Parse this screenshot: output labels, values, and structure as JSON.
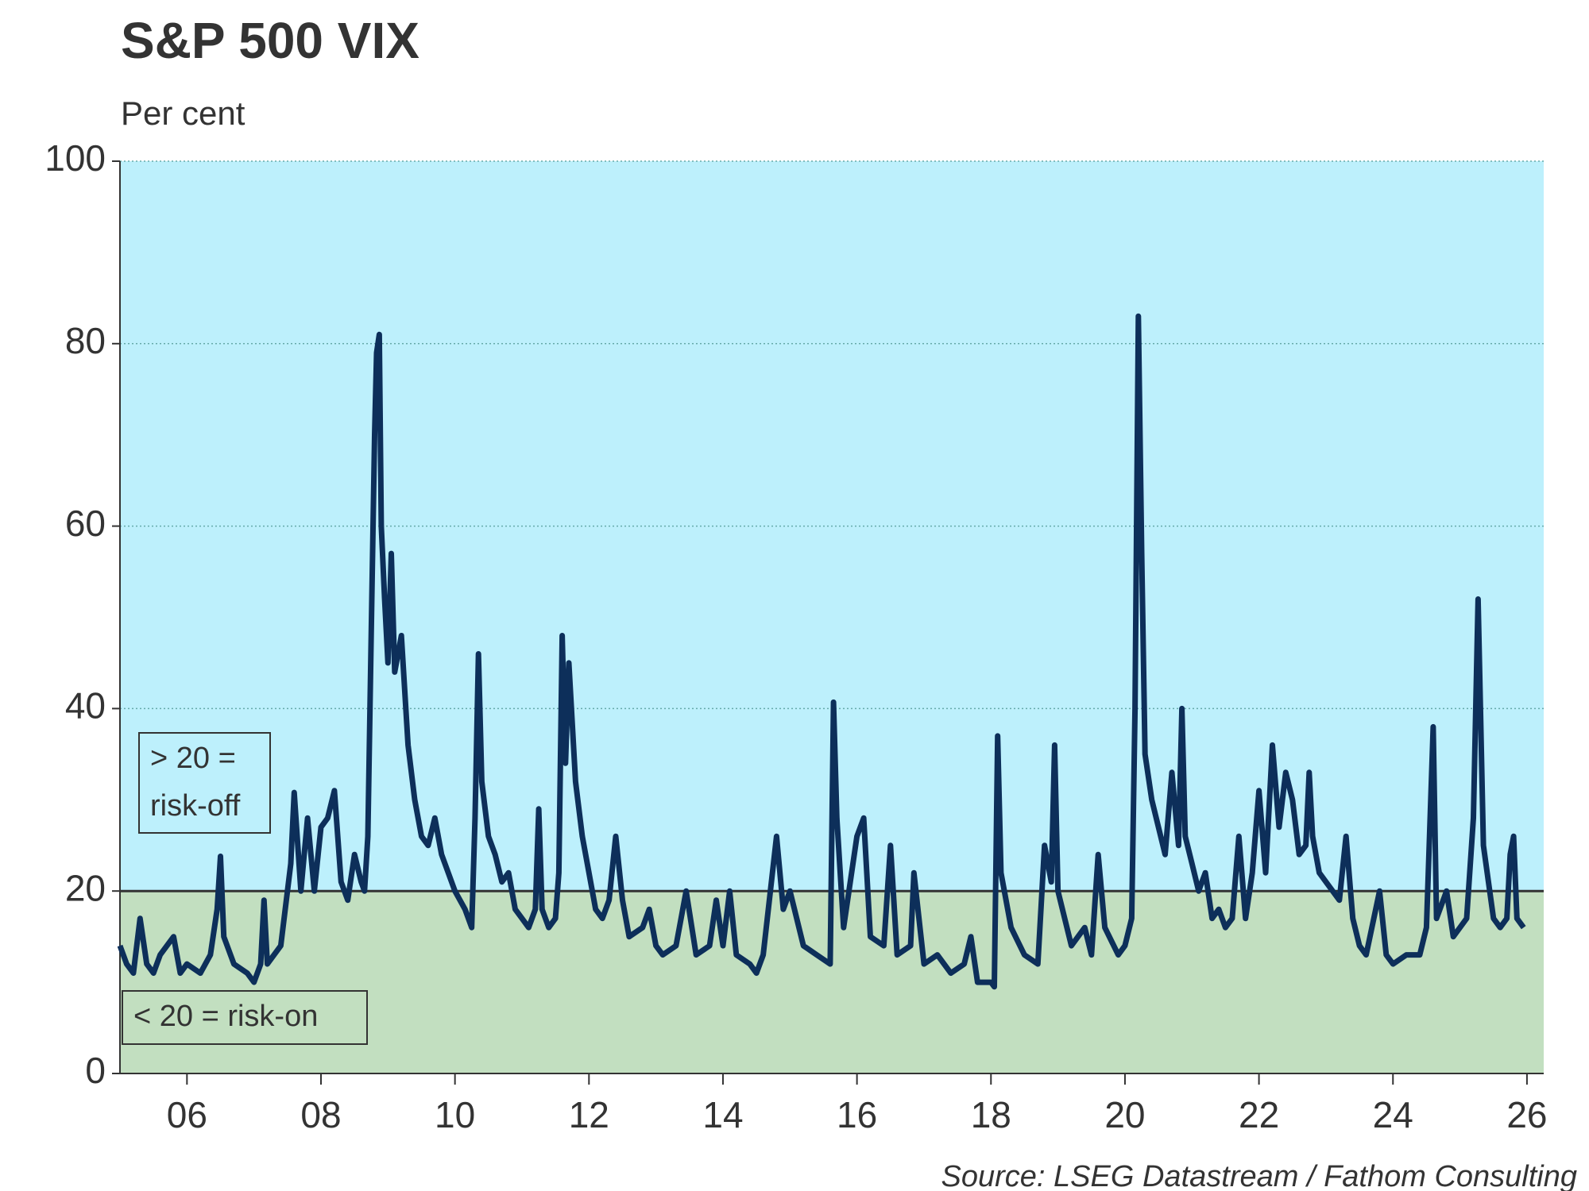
{
  "chart_data": {
    "type": "line",
    "title": "S&P 500 VIX",
    "subtitle": "Per cent",
    "source": "Source: LSEG Datastream / Fathom Consulting",
    "threshold": 20,
    "colors": {
      "above": "#bdf0fc",
      "below": "#c2dfc0",
      "threshold": "#333333"
    },
    "annotations": [
      {
        "lines": [
          "> 20 =",
          "risk-off"
        ]
      },
      {
        "lines": [
          "< 20 = risk-on"
        ]
      }
    ],
    "grid": true,
    "xlim": [
      2005,
      2026.25
    ],
    "xticks": [
      {
        "value": 2006,
        "label": "06"
      },
      {
        "value": 2008,
        "label": "08"
      },
      {
        "value": 2010,
        "label": "10"
      },
      {
        "value": 2012,
        "label": "12"
      },
      {
        "value": 2014,
        "label": "14"
      },
      {
        "value": 2016,
        "label": "16"
      },
      {
        "value": 2018,
        "label": "18"
      },
      {
        "value": 2020,
        "label": "20"
      },
      {
        "value": 2022,
        "label": "22"
      },
      {
        "value": 2024,
        "label": "24"
      },
      {
        "value": 2026,
        "label": "26"
      }
    ],
    "ylim": [
      0,
      100
    ],
    "yticks": [
      0,
      20,
      40,
      60,
      80,
      100
    ],
    "x": [
      2005.0,
      2005.1,
      2005.2,
      2005.3,
      2005.4,
      2005.5,
      2005.6,
      2005.8,
      2005.9,
      2006.0,
      2006.2,
      2006.35,
      2006.45,
      2006.5,
      2006.55,
      2006.7,
      2006.9,
      2007.0,
      2007.1,
      2007.15,
      2007.2,
      2007.4,
      2007.55,
      2007.6,
      2007.7,
      2007.8,
      2007.9,
      2008.0,
      2008.1,
      2008.2,
      2008.3,
      2008.4,
      2008.5,
      2008.6,
      2008.65,
      2008.7,
      2008.75,
      2008.8,
      2008.83,
      2008.87,
      2008.9,
      2008.95,
      2009.0,
      2009.05,
      2009.1,
      2009.2,
      2009.3,
      2009.4,
      2009.5,
      2009.6,
      2009.7,
      2009.8,
      2009.9,
      2010.0,
      2010.15,
      2010.25,
      2010.3,
      2010.35,
      2010.4,
      2010.5,
      2010.6,
      2010.7,
      2010.8,
      2010.9,
      2011.0,
      2011.1,
      2011.2,
      2011.25,
      2011.3,
      2011.4,
      2011.5,
      2011.55,
      2011.6,
      2011.65,
      2011.7,
      2011.8,
      2011.9,
      2012.0,
      2012.1,
      2012.2,
      2012.3,
      2012.4,
      2012.5,
      2012.6,
      2012.8,
      2012.9,
      2013.0,
      2013.1,
      2013.3,
      2013.45,
      2013.6,
      2013.8,
      2013.9,
      2014.0,
      2014.1,
      2014.2,
      2014.4,
      2014.5,
      2014.6,
      2014.8,
      2014.9,
      2015.0,
      2015.2,
      2015.4,
      2015.6,
      2015.65,
      2015.7,
      2015.8,
      2016.0,
      2016.1,
      2016.2,
      2016.4,
      2016.5,
      2016.6,
      2016.8,
      2016.85,
      2017.0,
      2017.2,
      2017.4,
      2017.6,
      2017.7,
      2017.8,
      2018.0,
      2018.05,
      2018.1,
      2018.15,
      2018.3,
      2018.5,
      2018.7,
      2018.8,
      2018.9,
      2018.95,
      2019.0,
      2019.2,
      2019.4,
      2019.5,
      2019.6,
      2019.7,
      2019.9,
      2020.0,
      2020.1,
      2020.15,
      2020.2,
      2020.25,
      2020.3,
      2020.4,
      2020.5,
      2020.6,
      2020.7,
      2020.8,
      2020.85,
      2020.9,
      2021.0,
      2021.1,
      2021.2,
      2021.3,
      2021.4,
      2021.5,
      2021.6,
      2021.7,
      2021.8,
      2021.9,
      2022.0,
      2022.1,
      2022.2,
      2022.3,
      2022.4,
      2022.5,
      2022.6,
      2022.7,
      2022.75,
      2022.8,
      2022.9,
      2023.0,
      2023.2,
      2023.3,
      2023.4,
      2023.5,
      2023.6,
      2023.8,
      2023.9,
      2024.0,
      2024.2,
      2024.4,
      2024.5,
      2024.6,
      2024.65,
      2024.8,
      2024.9,
      2025.0,
      2025.1,
      2025.2,
      2025.27,
      2025.35,
      2025.5,
      2025.6,
      2025.7,
      2025.75,
      2025.8,
      2025.85,
      2025.95
    ],
    "series": [
      {
        "name": "VIX",
        "color": "#0d2f5a",
        "values": [
          14,
          12,
          11,
          17,
          12,
          11,
          13,
          15,
          11,
          12,
          11,
          13,
          18,
          23.8,
          15,
          12,
          11,
          10,
          12,
          19,
          12,
          14,
          23,
          30.8,
          20,
          28,
          20,
          27,
          28,
          31,
          21,
          19,
          24,
          21,
          20,
          26,
          48,
          70,
          79,
          81,
          60,
          52,
          45,
          57,
          44,
          48,
          36,
          30,
          26,
          25,
          28,
          24,
          22,
          20,
          18,
          16,
          28,
          46,
          32,
          26,
          24,
          21,
          22,
          18,
          17,
          16,
          18,
          29,
          18,
          16,
          17,
          22,
          48,
          34,
          45,
          32,
          26,
          22,
          18,
          17,
          19,
          26,
          19,
          15,
          16,
          18,
          14,
          13,
          14,
          20,
          13,
          14,
          19,
          14,
          20,
          13,
          12,
          11,
          13,
          26,
          18,
          20,
          14,
          13,
          12,
          40.7,
          28,
          16,
          26,
          28,
          15,
          14,
          25,
          13,
          14,
          22,
          12,
          13,
          11,
          12,
          15,
          10,
          10,
          9.5,
          37,
          22,
          16,
          13,
          12,
          25,
          21,
          36,
          20,
          14,
          16,
          13,
          24,
          16,
          13,
          14,
          17,
          40,
          83,
          57,
          35,
          30,
          27,
          24,
          33,
          25,
          40,
          26,
          23,
          20,
          22,
          17,
          18,
          16,
          17,
          26,
          17,
          22,
          31,
          22,
          36,
          27,
          33,
          30,
          24,
          25,
          33,
          26,
          22,
          21,
          19,
          26,
          17,
          14,
          13,
          20,
          13,
          12,
          13,
          13,
          16,
          38,
          17,
          20,
          15,
          16,
          17,
          28,
          52,
          25,
          17,
          16,
          17,
          24,
          26,
          17,
          16
        ]
      }
    ]
  }
}
